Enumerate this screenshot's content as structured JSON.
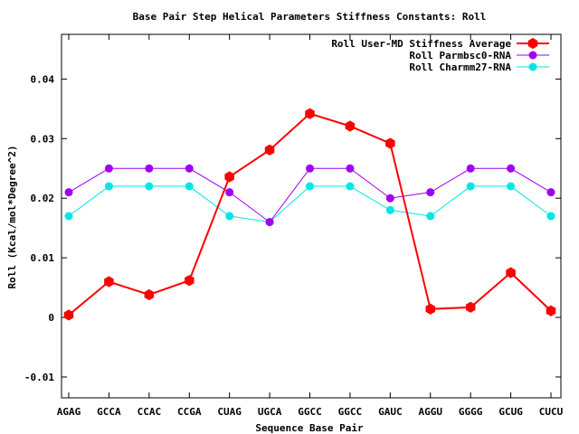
{
  "chart_data": {
    "type": "line",
    "title": "Base Pair Step Helical Parameters Stiffness Constants: Roll",
    "xlabel": "Sequence Base Pair",
    "ylabel": "Roll (Kcal/mol*Degree^2)",
    "categories": [
      "AGAG",
      "GCCA",
      "CCAC",
      "CCGA",
      "CUAG",
      "UGCA",
      "GGCC",
      "GGCC",
      "GAUC",
      "AGGU",
      "GGGG",
      "GCUG",
      "CUCU"
    ],
    "ylim": [
      -0.0135,
      0.0475
    ],
    "yticks": [
      -0.01,
      0,
      0.01,
      0.02,
      0.03,
      0.04
    ],
    "ytick_labels": [
      "-0.01",
      "0",
      "0.01",
      "0.02",
      "0.03",
      "0.04"
    ],
    "grid": false,
    "legend_position": "top-right",
    "series": [
      {
        "name": "Roll User-MD Stiffness Average",
        "color": "#ff0000",
        "marker": "hexagon",
        "values": [
          0.0004,
          0.006,
          0.0038,
          0.0062,
          0.0236,
          0.0281,
          0.0342,
          0.0321,
          0.0292,
          0.0014,
          0.0017,
          0.0075,
          0.0011
        ]
      },
      {
        "name": "Roll Parmbsc0-RNA",
        "color": "#a000f0",
        "marker": "circle",
        "values": [
          0.021,
          0.025,
          0.025,
          0.025,
          0.021,
          0.016,
          0.025,
          0.025,
          0.02,
          0.021,
          0.025,
          0.025,
          0.021
        ]
      },
      {
        "name": "Roll Charmm27-RNA",
        "color": "#00e6e6",
        "marker": "circle",
        "values": [
          0.017,
          0.022,
          0.022,
          0.022,
          0.017,
          0.016,
          0.022,
          0.022,
          0.018,
          0.017,
          0.022,
          0.022,
          0.017
        ]
      }
    ]
  }
}
